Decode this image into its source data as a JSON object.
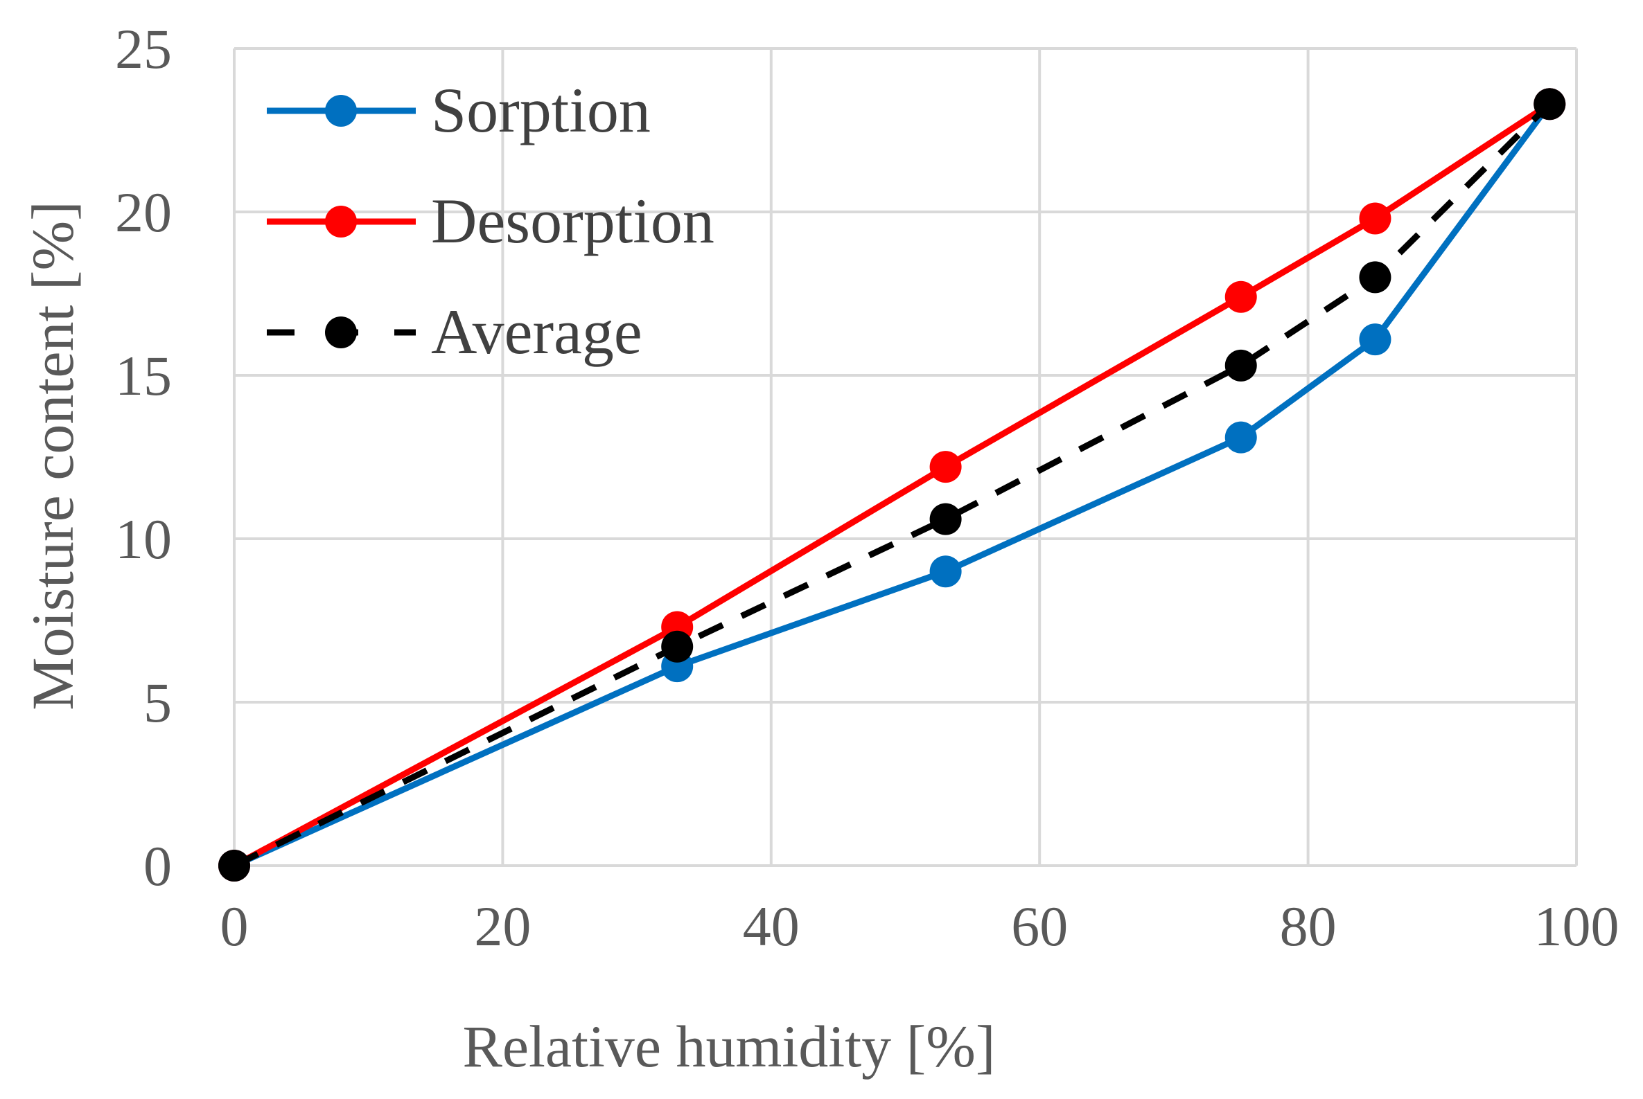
{
  "chart_data": {
    "type": "line",
    "title": "",
    "xlabel": "Relative humidity [%]",
    "ylabel": "Moisture content [%]",
    "xlim": [
      0,
      100
    ],
    "ylim": [
      0,
      25
    ],
    "xticks": [
      0,
      20,
      40,
      60,
      80,
      100
    ],
    "yticks": [
      0,
      5,
      10,
      15,
      20,
      25
    ],
    "grid": true,
    "legend_position": "top-left",
    "series": [
      {
        "name": "Sorption",
        "color": "#0070c0",
        "style": "solid",
        "x": [
          0,
          33,
          53,
          75,
          85,
          98
        ],
        "y": [
          0,
          6.1,
          9.0,
          13.1,
          16.1,
          23.3
        ]
      },
      {
        "name": "Desorption",
        "color": "#ff0000",
        "style": "solid",
        "x": [
          0,
          33,
          53,
          75,
          85,
          98
        ],
        "y": [
          0,
          7.3,
          12.2,
          17.4,
          19.8,
          23.3
        ]
      },
      {
        "name": "Average",
        "color": "#000000",
        "style": "dashed",
        "x": [
          0,
          33,
          53,
          75,
          85,
          98
        ],
        "y": [
          0,
          6.7,
          10.6,
          15.3,
          18.0,
          23.3
        ]
      }
    ]
  }
}
